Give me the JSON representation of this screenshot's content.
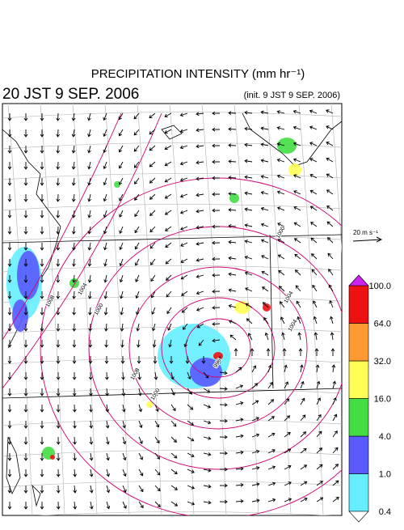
{
  "header": {
    "title": "PRECIPITATION INTENSITY (mm hr⁻¹)",
    "valid_time": "20 JST 9 SEP. 2006",
    "init_time": "(init. 9 JST 9 SEP. 2006)"
  },
  "wind_reference": "20 m s⁻¹",
  "colorbar": {
    "levels": [
      "0.4",
      "1.0",
      "4.0",
      "16.0",
      "32.0",
      "64.0",
      "100.0"
    ],
    "colors": [
      "#66eeff",
      "#5a5aff",
      "#44dd44",
      "#ffff55",
      "#ff9933",
      "#ee1111"
    ],
    "over_color": "#cc22ee",
    "under_color": "#ffffff"
  },
  "contour_labels": [
    "1008",
    "1004",
    "1000",
    "1008",
    "1000",
    "996",
    "1004",
    "1004",
    "1000"
  ]
}
